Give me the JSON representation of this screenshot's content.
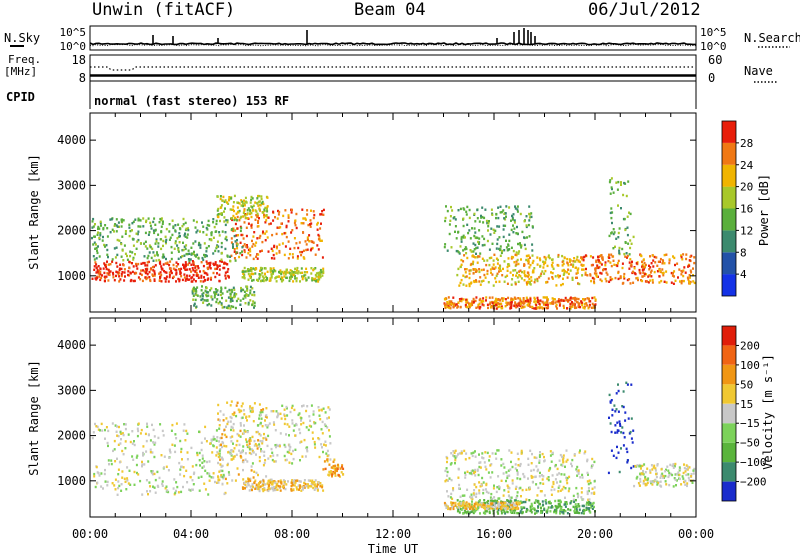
{
  "header": {
    "station": "Unwin (fitACF)",
    "beam": "Beam 04",
    "date": "06/Jul/2012"
  },
  "top_strip": {
    "left_label": "N.Sky",
    "left_ticks": [
      "10^5",
      "10^0"
    ],
    "right_label": "N.Search",
    "right_ticks": [
      "10^5",
      "10^0"
    ]
  },
  "freq_strip": {
    "left_label_1": "Freq.",
    "left_label_2": "[MHz]",
    "left_ticks": [
      "18",
      "8"
    ],
    "right_label": "Nave",
    "right_ticks": [
      "60",
      "0"
    ]
  },
  "cpid_strip": {
    "label": "CPID",
    "text": "normal (fast stereo) 153 RF"
  },
  "x_axis": {
    "label": "Time UT",
    "ticks": [
      "00:00",
      "04:00",
      "08:00",
      "12:00",
      "16:00",
      "20:00",
      "00:00"
    ]
  },
  "chart_data": [
    {
      "type": "heatmap",
      "panel": "power",
      "ylabel": "Slant Range [km]",
      "yticks": [
        "1000",
        "2000",
        "3000",
        "4000"
      ],
      "ylim": [
        200,
        4600
      ],
      "xlim_hours": [
        0,
        24
      ],
      "colorbar": {
        "label": "Power [dB]",
        "ticks": [
          "4",
          "8",
          "12",
          "16",
          "20",
          "24",
          "28"
        ],
        "colors": [
          "#1432e6",
          "#2352a8",
          "#3c8a6e",
          "#5aaf3c",
          "#a8c82a",
          "#f0b400",
          "#f07814",
          "#e81e0a"
        ]
      },
      "regions": [
        {
          "t0": 0.0,
          "t1": 5.5,
          "r_lo": 900,
          "r_hi": 1350,
          "level": 7
        },
        {
          "t0": 5.5,
          "t1": 9.3,
          "r_lo": 1400,
          "r_hi": 2500,
          "level": 6
        },
        {
          "t0": 0.0,
          "t1": 6.0,
          "r_lo": 1350,
          "r_hi": 2300,
          "level": 3
        },
        {
          "t0": 5.0,
          "t1": 7.0,
          "r_lo": 2300,
          "r_hi": 2800,
          "level": 4
        },
        {
          "t0": 6.0,
          "t1": 9.2,
          "r_lo": 900,
          "r_hi": 1200,
          "level": 4
        },
        {
          "t0": 4.0,
          "t1": 6.5,
          "r_lo": 300,
          "r_hi": 800,
          "level": 3
        },
        {
          "t0": 14.5,
          "t1": 19.5,
          "r_lo": 800,
          "r_hi": 1500,
          "level": 5
        },
        {
          "t0": 14.0,
          "t1": 17.5,
          "r_lo": 1500,
          "r_hi": 2600,
          "level": 3
        },
        {
          "t0": 14.0,
          "t1": 20.0,
          "r_lo": 300,
          "r_hi": 550,
          "level": 6
        },
        {
          "t0": 19.5,
          "t1": 24.0,
          "r_lo": 850,
          "r_hi": 1500,
          "level": 6
        },
        {
          "t0": 20.5,
          "t1": 21.5,
          "r_lo": 1500,
          "r_hi": 3200,
          "level": 3
        }
      ]
    },
    {
      "type": "heatmap",
      "panel": "velocity",
      "ylabel": "Slant Range [km]",
      "yticks": [
        "1000",
        "2000",
        "3000",
        "4000"
      ],
      "ylim": [
        200,
        4600
      ],
      "xlim_hours": [
        0,
        24
      ],
      "colorbar": {
        "label": "Velocity [m s⁻¹]",
        "ticks": [
          "200",
          "100",
          "50",
          "15",
          "-15",
          "-50",
          "-100",
          "-200"
        ],
        "colors": [
          "#1a2ccc",
          "#3c8a6e",
          "#5ab43c",
          "#7cd25a",
          "#c8c8c8",
          "#f0c832",
          "#f09614",
          "#f06414",
          "#e01e0a"
        ]
      },
      "regions": [
        {
          "t0": 0.0,
          "t1": 5.5,
          "r_lo": 700,
          "r_hi": 2300,
          "level": 4
        },
        {
          "t0": 5.5,
          "t1": 9.5,
          "r_lo": 1400,
          "r_hi": 2700,
          "level": 4
        },
        {
          "t0": 5.0,
          "t1": 7.0,
          "r_lo": 1000,
          "r_hi": 2800,
          "level": 5
        },
        {
          "t0": 6.0,
          "t1": 9.2,
          "r_lo": 800,
          "r_hi": 1050,
          "level": 5
        },
        {
          "t0": 9.2,
          "t1": 10.0,
          "r_lo": 1100,
          "r_hi": 1500,
          "level": 6
        },
        {
          "t0": 14.0,
          "t1": 20.0,
          "r_lo": 600,
          "r_hi": 1700,
          "level": 4
        },
        {
          "t0": 14.5,
          "t1": 20.0,
          "r_lo": 300,
          "r_hi": 600,
          "level": 2
        },
        {
          "t0": 14.0,
          "t1": 17.0,
          "r_lo": 400,
          "r_hi": 550,
          "level": 5
        },
        {
          "t0": 20.5,
          "t1": 21.5,
          "r_lo": 1200,
          "r_hi": 3200,
          "level": 0
        },
        {
          "t0": 21.5,
          "t1": 24.0,
          "r_lo": 900,
          "r_hi": 1400,
          "level": 4
        }
      ]
    }
  ]
}
